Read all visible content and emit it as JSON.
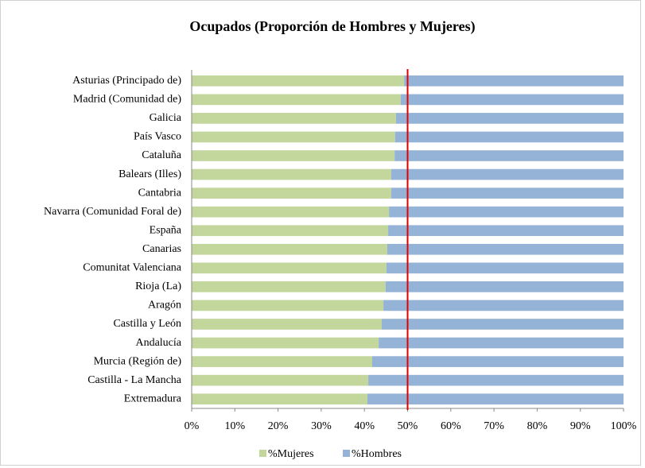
{
  "chart_data": {
    "type": "stacked_barh",
    "title": "Ocupados (Proporción de Hombres  y Mujeres)",
    "categories": [
      "Asturias (Principado de)",
      "Madrid (Comunidad de)",
      "Galicia",
      "País Vasco",
      "Cataluña",
      "Balears (Illes)",
      "Cantabria",
      "Navarra (Comunidad Foral de)",
      "España",
      "Canarias",
      "Comunitat Valenciana",
      "Rioja (La)",
      "Aragón",
      "Castilla y León",
      "Andalucía",
      "Murcia (Región de)",
      "Castilla - La Mancha",
      "Extremadura"
    ],
    "series": [
      {
        "name": "%Mujeres",
        "color": "#c3d69b",
        "values": [
          49.2,
          48.4,
          47.3,
          47.1,
          47.0,
          46.2,
          46.2,
          45.7,
          45.5,
          45.3,
          45.1,
          44.9,
          44.4,
          44.0,
          43.3,
          41.8,
          40.9,
          40.7
        ]
      },
      {
        "name": "%Hombres",
        "color": "#95b3d7",
        "values": [
          50.8,
          51.6,
          52.7,
          52.9,
          53.0,
          53.8,
          53.8,
          54.3,
          54.5,
          54.7,
          54.9,
          55.1,
          55.6,
          56.0,
          56.7,
          58.2,
          59.1,
          59.3
        ]
      }
    ],
    "xlim": [
      0,
      100
    ],
    "xticks": [
      {
        "value": 0,
        "label": "0%"
      },
      {
        "value": 10,
        "label": "10%"
      },
      {
        "value": 20,
        "label": "20%"
      },
      {
        "value": 30,
        "label": "30%"
      },
      {
        "value": 40,
        "label": "40%"
      },
      {
        "value": 50,
        "label": "50%"
      },
      {
        "value": 60,
        "label": "60%"
      },
      {
        "value": 70,
        "label": "70%"
      },
      {
        "value": 80,
        "label": "80%"
      },
      {
        "value": 90,
        "label": "90%"
      },
      {
        "value": 100,
        "label": "100%"
      }
    ],
    "reference_line": {
      "value": 50,
      "color": "#e00000"
    },
    "legend": "bottom"
  }
}
